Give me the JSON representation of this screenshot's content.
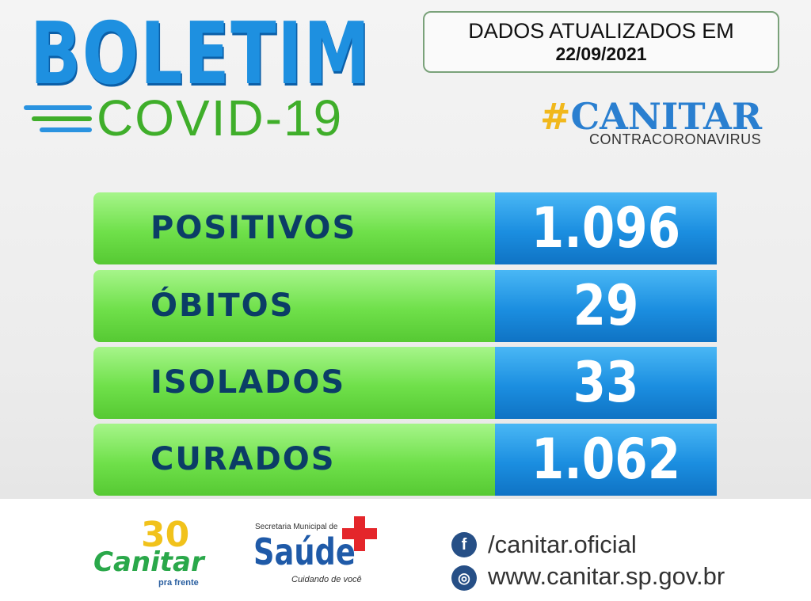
{
  "header": {
    "title": "BOLETIM",
    "subtitle": "COVID-19",
    "update_label": "DADOS ATUALIZADOS EM",
    "update_date": "22/09/2021",
    "hashtag": "#CANITAR",
    "hashtag_sub": "CONTRACORONAVIRUS"
  },
  "rows": [
    {
      "label": "POSITIVOS",
      "value": "1.096"
    },
    {
      "label": "ÓBITOS",
      "value": "29"
    },
    {
      "label": "ISOLADOS",
      "value": "33"
    },
    {
      "label": "CURADOS",
      "value": "1.062"
    }
  ],
  "footer": {
    "logo_number": "30",
    "logo_name": "Canitar",
    "logo_tagline": "pra frente",
    "health_dept": "Secretaria Municipal de",
    "health_name": "Saúde",
    "health_tagline": "Cuidando de você",
    "facebook": "/canitar.oficial",
    "website": "www.canitar.sp.gov.br"
  }
}
